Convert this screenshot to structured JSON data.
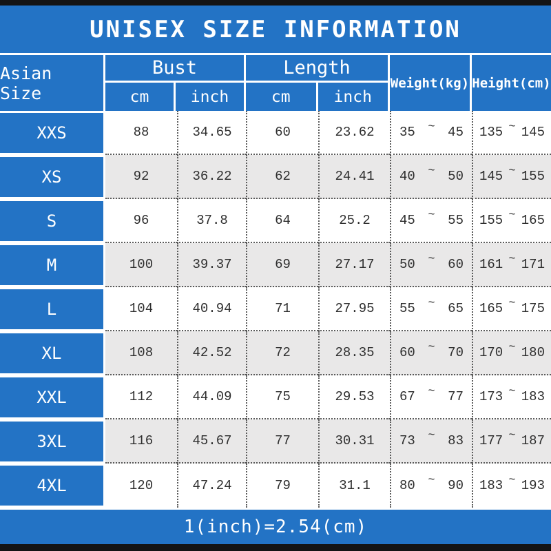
{
  "title": "UNISEX SIZE INFORMATION",
  "footer": {
    "note": "1(inch)=2.54(cm)"
  },
  "colors": {
    "accent_blue": "#2373c5",
    "alt_row_gray": "#e9e8e8",
    "bar_black": "#141414",
    "data_text": "#2e2e2e"
  },
  "table": {
    "corner_header": "Asian Size",
    "groups": [
      {
        "label": "Bust",
        "sub": [
          "cm",
          "inch"
        ]
      },
      {
        "label": "Length",
        "sub": [
          "cm",
          "inch"
        ]
      }
    ],
    "single_headers": [
      "Weight(kg)",
      "Height(cm)"
    ],
    "range_separator": "~",
    "rows": [
      {
        "size": "XXS",
        "bust_cm": "88",
        "bust_inch": "34.65",
        "length_cm": "60",
        "length_inch": "23.62",
        "weight_min": "35",
        "weight_max": "45",
        "height_min": "135",
        "height_max": "145"
      },
      {
        "size": "XS",
        "bust_cm": "92",
        "bust_inch": "36.22",
        "length_cm": "62",
        "length_inch": "24.41",
        "weight_min": "40",
        "weight_max": "50",
        "height_min": "145",
        "height_max": "155"
      },
      {
        "size": "S",
        "bust_cm": "96",
        "bust_inch": "37.8",
        "length_cm": "64",
        "length_inch": "25.2",
        "weight_min": "45",
        "weight_max": "55",
        "height_min": "155",
        "height_max": "165"
      },
      {
        "size": "M",
        "bust_cm": "100",
        "bust_inch": "39.37",
        "length_cm": "69",
        "length_inch": "27.17",
        "weight_min": "50",
        "weight_max": "60",
        "height_min": "161",
        "height_max": "171"
      },
      {
        "size": "L",
        "bust_cm": "104",
        "bust_inch": "40.94",
        "length_cm": "71",
        "length_inch": "27.95",
        "weight_min": "55",
        "weight_max": "65",
        "height_min": "165",
        "height_max": "175"
      },
      {
        "size": "XL",
        "bust_cm": "108",
        "bust_inch": "42.52",
        "length_cm": "72",
        "length_inch": "28.35",
        "weight_min": "60",
        "weight_max": "70",
        "height_min": "170",
        "height_max": "180"
      },
      {
        "size": "XXL",
        "bust_cm": "112",
        "bust_inch": "44.09",
        "length_cm": "75",
        "length_inch": "29.53",
        "weight_min": "67",
        "weight_max": "77",
        "height_min": "173",
        "height_max": "183"
      },
      {
        "size": "3XL",
        "bust_cm": "116",
        "bust_inch": "45.67",
        "length_cm": "77",
        "length_inch": "30.31",
        "weight_min": "73",
        "weight_max": "83",
        "height_min": "177",
        "height_max": "187"
      },
      {
        "size": "4XL",
        "bust_cm": "120",
        "bust_inch": "47.24",
        "length_cm": "79",
        "length_inch": "31.1",
        "weight_min": "80",
        "weight_max": "90",
        "height_min": "183",
        "height_max": "193"
      }
    ]
  }
}
